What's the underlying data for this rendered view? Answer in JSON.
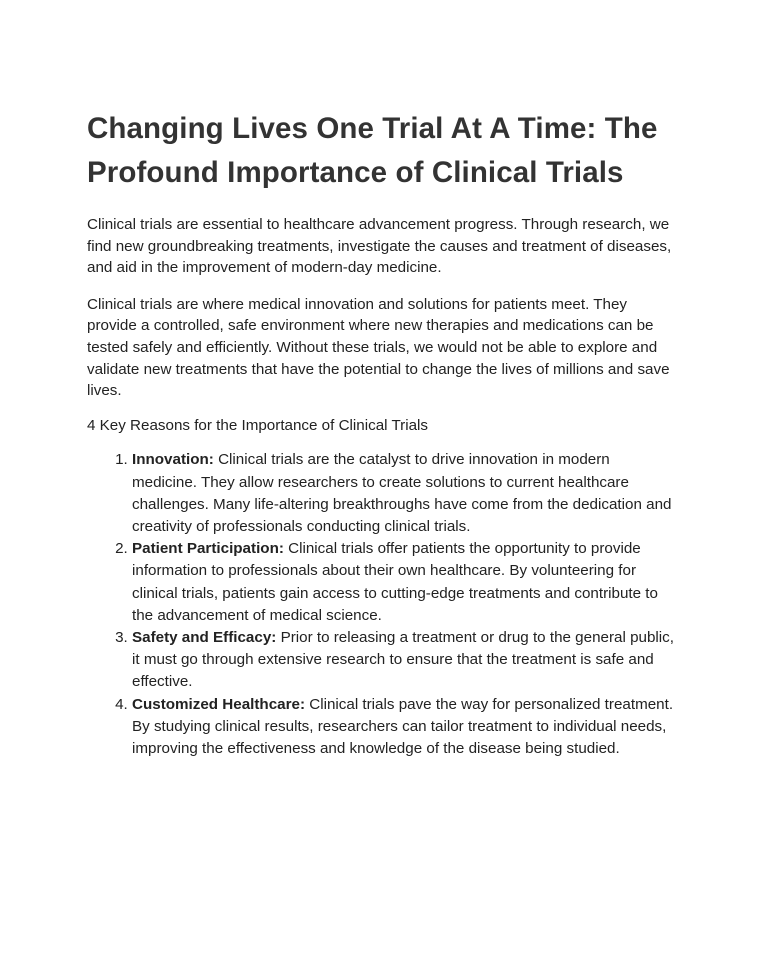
{
  "document": {
    "title": "Changing Lives One Trial At A Time: The Profound Importance of Clinical Trials",
    "paragraphs": [
      "Clinical trials are essential to healthcare advancement progress. Through research, we find new groundbreaking treatments, investigate the causes and treatment of diseases, and aid in the improvement of modern-day medicine.",
      "Clinical trials are where medical innovation and solutions for patients meet. They provide a controlled, safe environment where new therapies and medications can be tested safely and efficiently. Without these trials, we would not be able to explore and validate new treatments that have the potential to change the lives of millions and save lives."
    ],
    "reasons_heading": "4 Key Reasons for the Importance of Clinical Trials",
    "reasons": [
      {
        "term": "Innovation:",
        "text": " Clinical trials are the catalyst to drive innovation in modern medicine. They allow researchers to create solutions to current healthcare challenges. Many life-altering breakthroughs have come from the dedication and creativity of professionals conducting clinical trials."
      },
      {
        "term": "Patient Participation:",
        "text": " Clinical trials offer patients the opportunity to provide information to professionals about their own healthcare. By volunteering for clinical trials, patients gain access to cutting-edge treatments and contribute to the advancement of medical science."
      },
      {
        "term": "Safety and Efficacy:",
        "text": " Prior to releasing a treatment or drug to the general public, it must go through extensive research to ensure that the treatment is safe and effective."
      },
      {
        "term": "Customized Healthcare:",
        "text": " Clinical trials pave the way for personalized treatment. By studying clinical results, researchers can tailor treatment to individual needs, improving the effectiveness and knowledge of the disease being studied."
      }
    ]
  }
}
